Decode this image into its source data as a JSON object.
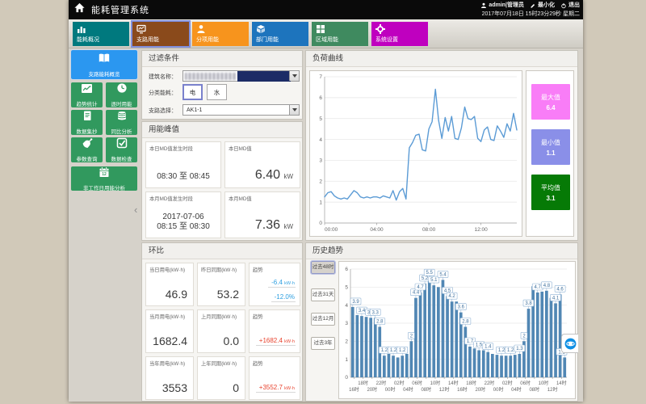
{
  "app": {
    "title": "能耗管理系统",
    "user": "admin|管理员",
    "minimize_label": "最小化",
    "logout_label": "退出",
    "datetime": "2017年07月18日 15时23分29秒 星期二"
  },
  "tabs": [
    {
      "label": "能耗概况",
      "color": "#00797e",
      "icon": "bar-chart-icon",
      "selected": false
    },
    {
      "label": "支路用能",
      "color": "#8a4a1b",
      "icon": "monitor-chart-icon",
      "selected": true
    },
    {
      "label": "分项用能",
      "color": "#f7941d",
      "icon": "person-icon",
      "selected": false
    },
    {
      "label": "部门用能",
      "color": "#1d74bd",
      "icon": "cube-icon",
      "selected": false
    },
    {
      "label": "区域用能",
      "color": "#3f8a5f",
      "icon": "grid-icon",
      "selected": false
    },
    {
      "label": "系统设置",
      "color": "#bf00bf",
      "icon": "gear-icon",
      "selected": false
    }
  ],
  "sidebar": {
    "collapse_icon": "‹",
    "items": [
      {
        "label": "支路能耗概览",
        "icon": "book-icon",
        "selected": true
      },
      {
        "label": "趋势统计",
        "icon": "trend-chart-icon",
        "selected": false
      },
      {
        "label": "逐时用能",
        "icon": "clock-icon",
        "selected": false
      },
      {
        "label": "数据集抄",
        "icon": "document-icon",
        "selected": false
      },
      {
        "label": "同比分析",
        "icon": "database-icon",
        "selected": false
      },
      {
        "label": "参数查询",
        "icon": "satellite-icon",
        "selected": false
      },
      {
        "label": "数据检查",
        "icon": "check-square-icon",
        "selected": false
      },
      {
        "label": "非工作日用能分析",
        "icon": "calendar-icon",
        "selected": false
      }
    ]
  },
  "filter": {
    "title": "过滤条件",
    "building_label": "建筑名称：",
    "category_label": "分类能耗：",
    "category_options": [
      {
        "label": "电",
        "selected": true
      },
      {
        "label": "水",
        "selected": false
      }
    ],
    "branch_label": "支路选择：",
    "branch_value": "AK1-1"
  },
  "peak": {
    "title": "用能峰值",
    "today_period_label": "本日MD值发生时段",
    "today_period": "08:30  至  08:45",
    "today_md_label": "本日MD值",
    "today_md": "6.40",
    "today_md_unit": "kW",
    "month_period_label": "本月MD值发生时段",
    "month_period_date": "2017-07-06",
    "month_period": "08:15  至  08:30",
    "month_md_label": "本月MD值",
    "month_md": "7.36",
    "month_md_unit": "kW"
  },
  "huanbi": {
    "title": "环比",
    "rows": [
      {
        "label1": "当日用电(kW·h)",
        "val1": "46.9",
        "label2": "昨日同期(kW·h)",
        "val2": "53.2",
        "trend_label": "趋势",
        "trend_val": "-6.4",
        "trend_unit": "kW·h",
        "trend_pct": "-12.0%",
        "trend_color": "#2e9fe0"
      },
      {
        "label1": "当月用电(kW·h)",
        "val1": "1682.4",
        "label2": "上月同期(kW·h)",
        "val2": "0.0",
        "trend_label": "趋势",
        "trend_val": "+1682.4",
        "trend_unit": "kW·h",
        "trend_pct": "",
        "trend_color": "#e8432e"
      },
      {
        "label1": "当年用电(kW·h)",
        "val1": "3553",
        "label2": "上年同期(kW·h)",
        "val2": "0",
        "trend_label": "趋势",
        "trend_val": "+3552.7",
        "trend_unit": "kW·h",
        "trend_pct": "",
        "trend_color": "#e8432e"
      }
    ]
  },
  "badges": [
    {
      "label": "最大值",
      "value": "6.4",
      "color": "#f97df7"
    },
    {
      "label": "最小值",
      "value": "1.1",
      "color": "#8a8fe8"
    },
    {
      "label": "平均值",
      "value": "3.1",
      "color": "#067a06"
    }
  ],
  "chart_data": [
    {
      "id": "load_curve",
      "type": "line",
      "title": "负荷曲线",
      "x_start": "00:00",
      "x_interval_minutes": 15,
      "x_ticks": [
        "00:00",
        "04:00",
        "08:00",
        "12:00"
      ],
      "x_tick_positions": [
        0,
        16,
        32,
        48
      ],
      "ylim": [
        0,
        7
      ],
      "line_color": "#5b9bd5",
      "grid": true,
      "values": [
        1.25,
        1.45,
        1.5,
        1.3,
        1.2,
        1.15,
        1.2,
        1.15,
        1.35,
        1.55,
        1.45,
        1.25,
        1.2,
        1.25,
        1.2,
        1.25,
        1.25,
        1.2,
        1.3,
        1.25,
        1.2,
        1.55,
        1.1,
        1.5,
        1.65,
        1.15,
        3.6,
        3.85,
        4.2,
        4.25,
        3.5,
        3.45,
        4.5,
        4.85,
        6.4,
        4.9,
        4.05,
        5.05,
        4.4,
        5.1,
        4.05,
        4,
        4.55,
        5.55,
        5,
        4.95,
        5.1,
        4.05,
        3.9,
        4.45,
        4.6,
        4,
        3.95,
        4.65,
        4.4,
        4.1,
        4.75,
        4.4,
        5.25,
        4.45
      ],
      "stats": {
        "max": 6.4,
        "min": 1.1,
        "avg": 3.1
      }
    },
    {
      "id": "history_trend",
      "type": "bar",
      "title": "历史趋势",
      "range_options": [
        "过去48时",
        "过去31天",
        "过去12月",
        "过去3年"
      ],
      "selected_range": "过去48时",
      "ylim": [
        0,
        6
      ],
      "bar_color": "#5187b4",
      "label_box_color": "#3c6e9c",
      "x_ticks": [
        "16时",
        "18时",
        "20时",
        "22时",
        "00时",
        "02时",
        "04时",
        "06时",
        "08时",
        "10时",
        "12时",
        "14时",
        "16时",
        "18时",
        "20时",
        "22时",
        "00时",
        "02时",
        "04时",
        "06时",
        "08时",
        "10时",
        "12时",
        "14时"
      ],
      "bars_per_tick": 2,
      "values": [
        3.9,
        3.45,
        3.4,
        3.35,
        3.3,
        3.3,
        2.8,
        1.2,
        1.3,
        1.2,
        1.1,
        1.2,
        1.3,
        2,
        4.4,
        4.7,
        5.2,
        5.5,
        5.1,
        5,
        5.4,
        4.5,
        4.2,
        4.2,
        3.6,
        2.8,
        1.7,
        1.6,
        1.5,
        1.5,
        1.4,
        1.3,
        1.25,
        1.2,
        1.2,
        1.2,
        1.25,
        1.3,
        2,
        3.8,
        5.05,
        4.7,
        4.75,
        4.8,
        4.4,
        4.1,
        4.6,
        1.1
      ],
      "labeled_indices": [
        0,
        2,
        4,
        5,
        6,
        7,
        9,
        11,
        13,
        14,
        15,
        16,
        17,
        18,
        20,
        21,
        22,
        24,
        25,
        26,
        28,
        30,
        33,
        35,
        37,
        38,
        39,
        41,
        43,
        45,
        46,
        47
      ]
    }
  ]
}
